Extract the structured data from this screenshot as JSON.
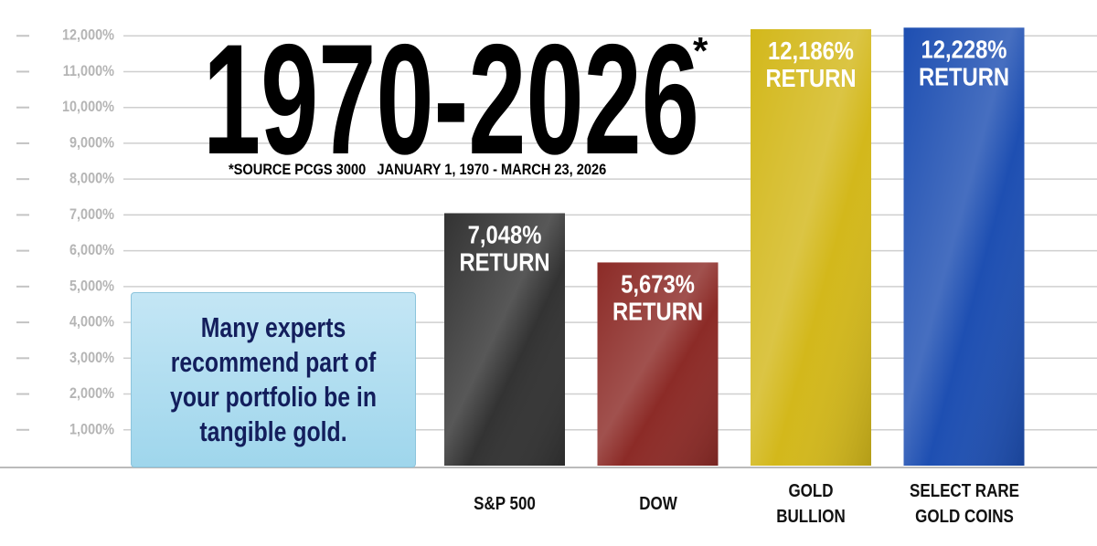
{
  "chart_data": {
    "type": "bar",
    "title": "1970-2026",
    "title_marker": "*",
    "subtitle": "*SOURCE PCGS 3000   JANUARY 1, 1970 - MARCH 23, 2026",
    "annotation": "Many experts\nrecommend part of\nyour portfolio be in\ntangible gold.",
    "categories": [
      "S&P 500",
      "DOW",
      "GOLD\nBULLION",
      "SELECT RARE\nGOLD COINS"
    ],
    "values": [
      7048,
      5673,
      12186,
      12228
    ],
    "value_labels": [
      "7,048%",
      "5,673%",
      "12,186%",
      "12,228%"
    ],
    "value_label_suffix": "RETURN",
    "colors": [
      "#333333",
      "#8c2b27",
      "#d3b81b",
      "#1e4fb2"
    ],
    "ylim": [
      0,
      13000
    ],
    "yticks": [
      {
        "value": 1000,
        "label": "1,000%"
      },
      {
        "value": 2000,
        "label": "2,000%"
      },
      {
        "value": 3000,
        "label": "3,000%"
      },
      {
        "value": 4000,
        "label": "4,000%"
      },
      {
        "value": 5000,
        "label": "5,000%"
      },
      {
        "value": 6000,
        "label": "6,000%"
      },
      {
        "value": 7000,
        "label": "7,000%"
      },
      {
        "value": 8000,
        "label": "8,000%"
      },
      {
        "value": 9000,
        "label": "9,000%"
      },
      {
        "value": 10000,
        "label": "10,000%"
      },
      {
        "value": 11000,
        "label": "11,000%"
      },
      {
        "value": 12000,
        "label": "12,000%"
      }
    ],
    "grid": true
  }
}
